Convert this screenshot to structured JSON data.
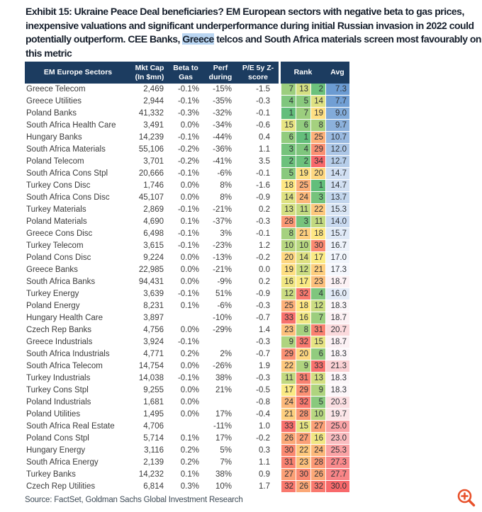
{
  "title": {
    "line1": "Exhibit 15: Ukraine Peace Deal beneficiaries? EM European sectors with negative beta to gas prices,",
    "line2": "inexpensive valuations and significant underperformance during initial Russian invasion in 2022 could",
    "line3_before": "potentially outperform. CEE Banks, ",
    "line3_highlight": "Greece",
    "line3_after": " telcos and South Africa materials screen most favourably on",
    "line4": "this metric"
  },
  "table": {
    "headers": {
      "sector": "EM Europe Sectors",
      "mktcap_l1": "Mkt Cap",
      "mktcap_l2": "(In $mn)",
      "beta_l1": "Beta to",
      "beta_l2": "Gas",
      "perf_l1": "Perf",
      "perf_l2": "during",
      "pe_l1": "P/E 5y Z-",
      "pe_l2": "score",
      "rank": "Rank",
      "avg": "Avg"
    }
  },
  "chart_data": {
    "type": "table",
    "title": "Exhibit 15: Ukraine Peace Deal beneficiaries? EM European sectors with negative beta to gas prices, inexpensive valuations and significant underperformance during initial Russian invasion in 2022 could potentially outperform. CEE Banks, Greece telcos and South Africa materials screen most favourably on this metric",
    "columns": [
      "EM Europe Sectors",
      "Mkt Cap (In $mn)",
      "Beta to Gas",
      "Perf during",
      "P/E 5y Z-score",
      "Rank 1",
      "Rank 2",
      "Rank 3",
      "Avg"
    ],
    "rows": [
      {
        "name": "Greece Telecom",
        "mkt_cap": "2,469",
        "beta_to_gas": "-0.1%",
        "perf_during": "-15%",
        "pe_5y_z": "-1.5",
        "ranks": [
          7,
          13,
          2
        ],
        "avg": 7.3
      },
      {
        "name": "Greece Utilities",
        "mkt_cap": "2,944",
        "beta_to_gas": "-0.1%",
        "perf_during": "-35%",
        "pe_5y_z": "-0.3",
        "ranks": [
          4,
          5,
          14
        ],
        "avg": 7.7
      },
      {
        "name": "Poland Banks",
        "mkt_cap": "41,332",
        "beta_to_gas": "-0.3%",
        "perf_during": "-32%",
        "pe_5y_z": "-0.1",
        "ranks": [
          1,
          7,
          19
        ],
        "avg": 9.0
      },
      {
        "name": "South Africa Health Care",
        "mkt_cap": "3,491",
        "beta_to_gas": "0.0%",
        "perf_during": "-34%",
        "pe_5y_z": "-0.6",
        "ranks": [
          15,
          6,
          8
        ],
        "avg": 9.7
      },
      {
        "name": "Hungary Banks",
        "mkt_cap": "14,239",
        "beta_to_gas": "-0.1%",
        "perf_during": "-44%",
        "pe_5y_z": "0.4",
        "ranks": [
          6,
          1,
          25
        ],
        "avg": 10.7
      },
      {
        "name": "South Africa Materials",
        "mkt_cap": "55,106",
        "beta_to_gas": "-0.2%",
        "perf_during": "-36%",
        "pe_5y_z": "1.1",
        "ranks": [
          3,
          4,
          29
        ],
        "avg": 12.0
      },
      {
        "name": "Poland Telecom",
        "mkt_cap": "3,701",
        "beta_to_gas": "-0.2%",
        "perf_during": "-41%",
        "pe_5y_z": "3.5",
        "ranks": [
          2,
          2,
          34
        ],
        "avg": 12.7
      },
      {
        "name": "South Africa Cons Stpl",
        "mkt_cap": "20,666",
        "beta_to_gas": "-0.1%",
        "perf_during": "-6%",
        "pe_5y_z": "-0.1",
        "ranks": [
          5,
          19,
          20
        ],
        "avg": 14.7
      },
      {
        "name": "Turkey Cons Disc",
        "mkt_cap": "1,746",
        "beta_to_gas": "0.0%",
        "perf_during": "8%",
        "pe_5y_z": "-1.6",
        "ranks": [
          18,
          25,
          1
        ],
        "avg": 14.7
      },
      {
        "name": "South Africa Cons Disc",
        "mkt_cap": "45,107",
        "beta_to_gas": "0.0%",
        "perf_during": "8%",
        "pe_5y_z": "-0.9",
        "ranks": [
          14,
          24,
          3
        ],
        "avg": 13.7
      },
      {
        "name": "Turkey Materials",
        "mkt_cap": "2,869",
        "beta_to_gas": "-0.1%",
        "perf_during": "-21%",
        "pe_5y_z": "0.2",
        "ranks": [
          13,
          11,
          22
        ],
        "avg": 15.3
      },
      {
        "name": "Poland Materials",
        "mkt_cap": "4,690",
        "beta_to_gas": "0.1%",
        "perf_during": "-37%",
        "pe_5y_z": "-0.3",
        "ranks": [
          28,
          3,
          11
        ],
        "avg": 14.0
      },
      {
        "name": "Greece Cons Disc",
        "mkt_cap": "6,498",
        "beta_to_gas": "-0.1%",
        "perf_during": "3%",
        "pe_5y_z": "-0.1",
        "ranks": [
          8,
          21,
          18
        ],
        "avg": 15.7
      },
      {
        "name": "Turkey Telecom",
        "mkt_cap": "3,615",
        "beta_to_gas": "-0.1%",
        "perf_during": "-23%",
        "pe_5y_z": "1.2",
        "ranks": [
          10,
          10,
          30
        ],
        "avg": 16.7
      },
      {
        "name": "Poland Cons Disc",
        "mkt_cap": "9,224",
        "beta_to_gas": "0.0%",
        "perf_during": "-13%",
        "pe_5y_z": "-0.2",
        "ranks": [
          20,
          14,
          17
        ],
        "avg": 17.0
      },
      {
        "name": "Greece Banks",
        "mkt_cap": "22,985",
        "beta_to_gas": "0.0%",
        "perf_during": "-21%",
        "pe_5y_z": "0.0",
        "ranks": [
          19,
          12,
          21
        ],
        "avg": 17.3
      },
      {
        "name": "South Africa Banks",
        "mkt_cap": "94,431",
        "beta_to_gas": "0.0%",
        "perf_during": "-9%",
        "pe_5y_z": "0.2",
        "ranks": [
          16,
          17,
          23
        ],
        "avg": 18.7
      },
      {
        "name": "Turkey Energy",
        "mkt_cap": "3,639",
        "beta_to_gas": "-0.1%",
        "perf_during": "51%",
        "pe_5y_z": "-0.9",
        "ranks": [
          12,
          32,
          4
        ],
        "avg": 16.0
      },
      {
        "name": "Poland Energy",
        "mkt_cap": "8,231",
        "beta_to_gas": "0.1%",
        "perf_during": "-6%",
        "pe_5y_z": "-0.3",
        "ranks": [
          25,
          18,
          12
        ],
        "avg": 18.3
      },
      {
        "name": "Hungary Health Care",
        "mkt_cap": "3,897",
        "beta_to_gas": "",
        "perf_during": "-10%",
        "pe_5y_z": "-0.7",
        "ranks": [
          33,
          16,
          7
        ],
        "avg": 18.7
      },
      {
        "name": "Czech Rep Banks",
        "mkt_cap": "4,756",
        "beta_to_gas": "0.0%",
        "perf_during": "-29%",
        "pe_5y_z": "1.4",
        "ranks": [
          23,
          8,
          31
        ],
        "avg": 20.7
      },
      {
        "name": "Greece Industrials",
        "mkt_cap": "3,924",
        "beta_to_gas": "-0.1%",
        "perf_during": "",
        "pe_5y_z": "-0.3",
        "ranks": [
          9,
          32,
          15
        ],
        "avg": 18.7
      },
      {
        "name": "South Africa Industrials",
        "mkt_cap": "4,771",
        "beta_to_gas": "0.2%",
        "perf_during": "2%",
        "pe_5y_z": "-0.7",
        "ranks": [
          29,
          20,
          6
        ],
        "avg": 18.3
      },
      {
        "name": "South Africa Telecom",
        "mkt_cap": "14,754",
        "beta_to_gas": "0.0%",
        "perf_during": "-26%",
        "pe_5y_z": "1.9",
        "ranks": [
          22,
          9,
          33
        ],
        "avg": 21.3
      },
      {
        "name": "Turkey Industrials",
        "mkt_cap": "14,038",
        "beta_to_gas": "-0.1%",
        "perf_during": "38%",
        "pe_5y_z": "-0.3",
        "ranks": [
          11,
          31,
          13
        ],
        "avg": 18.3
      },
      {
        "name": "Turkey Cons Stpl",
        "mkt_cap": "9,255",
        "beta_to_gas": "0.0%",
        "perf_during": "21%",
        "pe_5y_z": "-0.5",
        "ranks": [
          17,
          29,
          9
        ],
        "avg": 18.3
      },
      {
        "name": "Poland Industrials",
        "mkt_cap": "1,681",
        "beta_to_gas": "0.0%",
        "perf_during": "",
        "pe_5y_z": "-0.8",
        "ranks": [
          24,
          32,
          5
        ],
        "avg": 20.3
      },
      {
        "name": "Poland Utilities",
        "mkt_cap": "1,495",
        "beta_to_gas": "0.0%",
        "perf_during": "17%",
        "pe_5y_z": "-0.4",
        "ranks": [
          21,
          28,
          10
        ],
        "avg": 19.7
      },
      {
        "name": "South Africa Real Estate",
        "mkt_cap": "4,706",
        "beta_to_gas": "",
        "perf_during": "-11%",
        "pe_5y_z": "1.0",
        "ranks": [
          33,
          15,
          27
        ],
        "avg": 25.0
      },
      {
        "name": "Poland Cons Stpl",
        "mkt_cap": "5,714",
        "beta_to_gas": "0.1%",
        "perf_during": "17%",
        "pe_5y_z": "-0.2",
        "ranks": [
          26,
          27,
          16
        ],
        "avg": 23.0
      },
      {
        "name": "Hungary Energy",
        "mkt_cap": "3,116",
        "beta_to_gas": "0.2%",
        "perf_during": "5%",
        "pe_5y_z": "0.3",
        "ranks": [
          30,
          22,
          24
        ],
        "avg": 25.3
      },
      {
        "name": "South Africa Energy",
        "mkt_cap": "2,139",
        "beta_to_gas": "0.2%",
        "perf_during": "7%",
        "pe_5y_z": "1.1",
        "ranks": [
          31,
          23,
          28
        ],
        "avg": 27.3
      },
      {
        "name": "Turkey Banks",
        "mkt_cap": "14,232",
        "beta_to_gas": "0.1%",
        "perf_during": "38%",
        "pe_5y_z": "0.9",
        "ranks": [
          27,
          30,
          26
        ],
        "avg": 27.7
      },
      {
        "name": "Czech Rep Utilities",
        "mkt_cap": "6,814",
        "beta_to_gas": "0.3%",
        "perf_during": "10%",
        "pe_5y_z": "1.7",
        "ranks": [
          32,
          26,
          32
        ],
        "avg": 30.0
      }
    ]
  },
  "heatmap": {
    "rank_scale": {
      "colors": [
        "#63BE7B",
        "#FFEB84",
        "#F8696B"
      ],
      "domain": [
        1,
        17.5,
        34
      ]
    },
    "avg_scale": {
      "colors": [
        "#6B9BD2",
        "#FCFCFF",
        "#F8696B"
      ],
      "domain": [
        7.3,
        17.8,
        30.0
      ]
    }
  },
  "colors": {
    "header_navy": "#1C3C60",
    "highlight_blue": "#B9D5F1",
    "title_color": "#161F2C",
    "zoom_icon_orange": "#E8512B"
  },
  "footer": {
    "source": "Source: FactSet, Goldman Sachs Global Investment Research"
  }
}
